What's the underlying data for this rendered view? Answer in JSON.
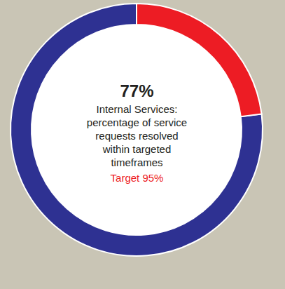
{
  "chart_data": {
    "type": "donut",
    "values": [
      77,
      23
    ],
    "colors": [
      "#2e3192",
      "#ed1c24"
    ],
    "value_labels": [
      "77%",
      null
    ],
    "annotations": [
      "Internal Services: percentage of service requests resolved within targeted timeframes",
      "Target 95%"
    ]
  }
}
